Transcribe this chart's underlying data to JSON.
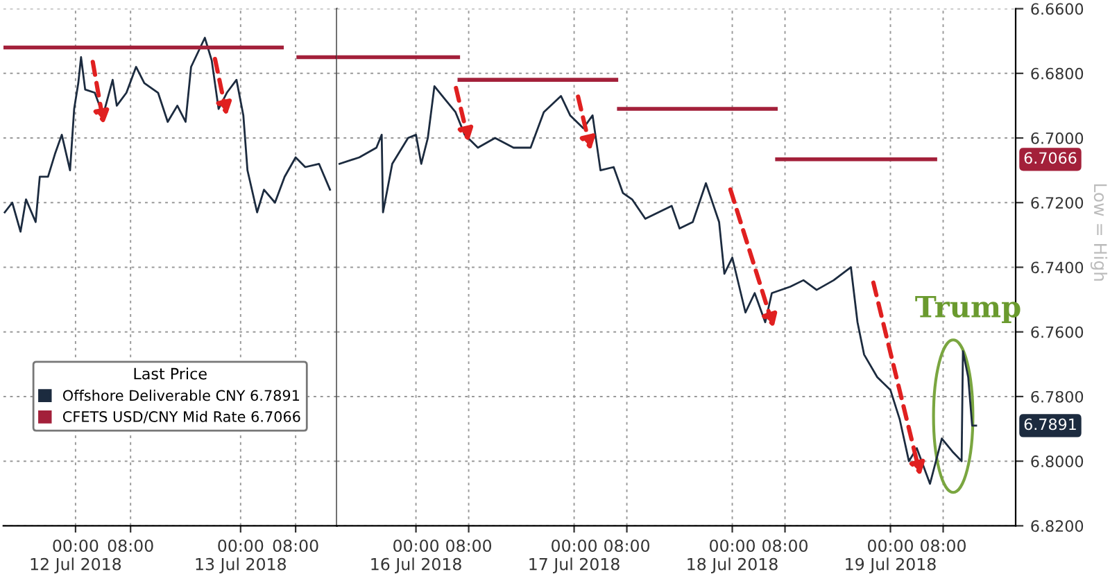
{
  "chart_data": [
    {
      "type": "line",
      "legend_title": "Last Price",
      "series": [
        {
          "name": "Offshore Deliverable CNY 6.7891",
          "color": "#1c2b3f",
          "x": [
            "2018-07-11T13:42",
            "2018-07-11T14:48",
            "2018-07-11T16:00",
            "2018-07-11T16:48",
            "2018-07-11T18:12",
            "2018-07-11T18:48",
            "2018-07-11T20:00",
            "2018-07-11T21:00",
            "2018-07-11T22:00",
            "2018-07-11T23:12",
            "2018-07-11T23:48",
            "2018-07-12T00:24",
            "2018-07-12T00:48",
            "2018-07-12T01:24",
            "2018-07-12T02:48",
            "2018-07-12T04:00",
            "2018-07-12T05:24",
            "2018-07-12T06:00",
            "2018-07-12T07:24",
            "2018-07-12T08:48",
            "2018-07-12T10:00",
            "2018-07-12T12:00",
            "2018-07-12T13:24",
            "2018-07-12T14:48",
            "2018-07-12T16:00",
            "2018-07-12T16:48",
            "2018-07-12T18:48",
            "2018-07-12T19:48",
            "2018-07-12T20:48",
            "2018-07-12T22:00",
            "2018-07-12T23:24",
            "2018-07-13T00:24",
            "2018-07-13T01:00",
            "2018-07-13T02:24",
            "2018-07-13T03:24",
            "2018-07-13T05:00",
            "2018-07-13T06:24",
            "2018-07-13T08:00",
            "2018-07-13T09:24",
            "2018-07-13T11:24",
            "2018-07-13T13:00"
          ],
          "values": [
            6.723,
            6.72,
            6.729,
            6.719,
            6.726,
            6.712,
            6.712,
            6.705,
            6.699,
            6.71,
            6.691,
            6.683,
            6.675,
            6.685,
            6.686,
            6.693,
            6.682,
            6.69,
            6.686,
            6.678,
            6.683,
            6.686,
            6.695,
            6.69,
            6.695,
            6.678,
            6.669,
            6.676,
            6.691,
            6.686,
            6.682,
            6.693,
            6.71,
            6.723,
            6.716,
            6.72,
            6.712,
            6.706,
            6.709,
            6.708,
            6.716
          ]
        },
        {
          "name": "CFETS USD/CNY Mid Rate 6.7066",
          "color": "#a3203a",
          "x": [
            "2018-07-11T13:48",
            "2018-07-13T06:00",
            "2018-07-13T07:00",
            "2018-07-13T08:24",
            "2018-07-13T14:00"
          ],
          "values": [
            6.672,
            6.672,
            null,
            6.675,
            6.675
          ]
        }
      ],
      "xlim": [
        "2018-07-11T13:30",
        "2018-07-13T14:00"
      ],
      "xticks": [
        {
          "value": "2018-07-12T00:00",
          "label": "00:00\n12 Jul 2018"
        },
        {
          "value": "2018-07-12T08:00",
          "label": "08:00"
        },
        {
          "value": "2018-07-13T00:00",
          "label": "00:00\n13 Jul 2018"
        },
        {
          "value": "2018-07-13T08:00",
          "label": "08:00"
        }
      ],
      "ylim": [
        6.82,
        6.66
      ],
      "yticks": [
        6.66,
        6.68,
        6.7,
        6.72,
        6.74,
        6.76,
        6.78,
        6.8,
        6.82
      ],
      "tick_labels": "x",
      "grid": true,
      "line_style": "solid",
      "legend": "bottom"
    },
    {
      "type": "line",
      "series": [
        {
          "color": "#1c2b3f",
          "x": [
            "2018-07-15T12:24",
            "2018-07-15T15:24",
            "2018-07-15T18:00",
            "2018-07-15T18:48",
            "2018-07-15T19:00",
            "2018-07-15T20:24",
            "2018-07-15T22:48",
            "2018-07-16T00:00",
            "2018-07-16T00:48",
            "2018-07-16T01:48",
            "2018-07-16T02:48",
            "2018-07-16T04:24",
            "2018-07-16T06:00",
            "2018-07-16T07:24",
            "2018-07-16T09:24",
            "2018-07-16T12:00",
            "2018-07-16T14:48",
            "2018-07-16T17:24",
            "2018-07-16T19:24",
            "2018-07-16T22:00",
            "2018-07-16T23:24",
            "2018-07-17T01:24",
            "2018-07-17T02:48",
            "2018-07-17T04:00",
            "2018-07-17T06:00",
            "2018-07-17T07:24",
            "2018-07-17T08:48",
            "2018-07-17T10:48",
            "2018-07-17T12:48",
            "2018-07-17T14:48",
            "2018-07-17T16:00",
            "2018-07-17T18:00",
            "2018-07-17T20:00",
            "2018-07-17T22:00",
            "2018-07-17T22:48",
            "2018-07-18T00:00",
            "2018-07-18T02:00",
            "2018-07-18T03:24",
            "2018-07-18T05:00",
            "2018-07-18T06:00",
            "2018-07-18T08:48",
            "2018-07-18T10:48",
            "2018-07-18T12:48",
            "2018-07-18T15:24",
            "2018-07-18T18:00",
            "2018-07-18T19:00",
            "2018-07-18T20:00",
            "2018-07-18T22:00",
            "2018-07-19T00:00",
            "2018-07-19T01:24",
            "2018-07-19T02:48",
            "2018-07-19T04:00",
            "2018-07-19T06:00",
            "2018-07-19T07:48",
            "2018-07-19T09:24",
            "2018-07-19T10:48",
            "2018-07-19T11:00",
            "2018-07-19T11:48",
            "2018-07-19T12:24",
            "2018-07-19T13:00"
          ],
          "values": [
            6.708,
            6.706,
            6.703,
            6.699,
            6.723,
            6.708,
            6.7,
            6.699,
            6.708,
            6.7,
            6.684,
            6.688,
            6.692,
            6.699,
            6.703,
            6.7,
            6.703,
            6.703,
            6.692,
            6.687,
            6.693,
            6.697,
            6.693,
            6.71,
            6.709,
            6.717,
            6.719,
            6.725,
            6.723,
            6.721,
            6.728,
            6.726,
            6.714,
            6.726,
            6.742,
            6.737,
            6.754,
            6.748,
            6.757,
            6.748,
            6.746,
            6.744,
            6.747,
            6.744,
            6.74,
            6.757,
            6.767,
            6.774,
            6.778,
            6.787,
            6.8,
            6.796,
            6.807,
            6.793,
            6.797,
            6.8,
            6.766,
            6.774,
            6.789,
            6.789
          ]
        },
        {
          "color": "#a3203a",
          "x": [
            "2018-07-15T12:00",
            "2018-07-16T06:24",
            "2018-07-16T06:30",
            "2018-07-16T06:36",
            "2018-07-17T06:24",
            "2018-07-17T06:36",
            "2018-07-17T06:48",
            "2018-07-18T06:36",
            "2018-07-18T06:42",
            "2018-07-18T06:48",
            "2018-07-19T06:48"
          ],
          "values": [
            6.675,
            6.675,
            null,
            6.682,
            6.682,
            null,
            6.691,
            6.691,
            null,
            6.7066,
            6.7066
          ]
        }
      ],
      "xlim": [
        "2018-07-15T12:00",
        "2018-07-19T19:00"
      ],
      "xticks": [
        {
          "value": "2018-07-16T00:00",
          "label": "00:00\n16 Jul 2018"
        },
        {
          "value": "2018-07-16T08:00",
          "label": "08:00"
        },
        {
          "value": "2018-07-17T00:00",
          "label": "00:00\n17 Jul 2018"
        },
        {
          "value": "2018-07-17T08:00",
          "label": "08:00"
        },
        {
          "value": "2018-07-18T00:00",
          "label": "00:00\n18 Jul 2018"
        },
        {
          "value": "2018-07-18T08:00",
          "label": "08:00"
        },
        {
          "value": "2018-07-19T00:00",
          "label": "00:00\n19 Jul 2018"
        },
        {
          "value": "2018-07-19T08:00",
          "label": "08:00"
        }
      ],
      "ylim": [
        6.82,
        6.66
      ],
      "yticks": [
        {
          "value": 6.66,
          "label": "6.6600"
        },
        {
          "value": 6.68,
          "label": "6.6800"
        },
        {
          "value": 6.7,
          "label": "6.7000"
        },
        {
          "value": 6.72,
          "label": "6.7200"
        },
        {
          "value": 6.74,
          "label": "6.7400"
        },
        {
          "value": 6.76,
          "label": "6.7600"
        },
        {
          "value": 6.78,
          "label": "6.7800"
        },
        {
          "value": 6.8,
          "label": "6.8000"
        },
        {
          "value": 6.82,
          "label": "6.8200"
        }
      ],
      "annotations": [
        "Trump",
        "6.7066",
        "6.7891",
        "Low = High"
      ],
      "grid": true,
      "line_style": "solid"
    }
  ]
}
